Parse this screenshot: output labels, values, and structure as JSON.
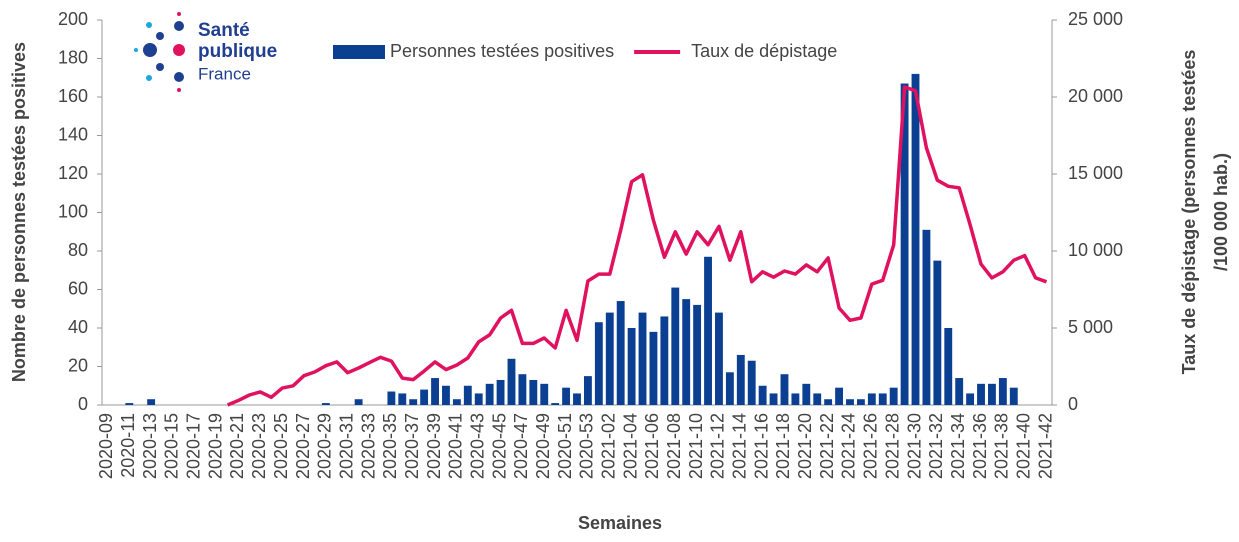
{
  "chart_data": {
    "type": "bar_line",
    "logo": {
      "line1": "Santé",
      "line2": "publique",
      "line3": "France"
    },
    "x_label": "Semaines",
    "y_label": "Nombre de personnes testées positives",
    "y2_label_line1": "Taux de dépistage (personnes testées",
    "y2_label_line2": "/100 000 hab.)",
    "categories": [
      "2020-09",
      null,
      "2020-11",
      null,
      "2020-13",
      null,
      "2020-15",
      null,
      "2020-17",
      null,
      "2020-19",
      null,
      "2020-21",
      null,
      "2020-23",
      null,
      "2020-25",
      null,
      "2020-27",
      null,
      "2020-29",
      null,
      "2020-31",
      null,
      "2020-33",
      null,
      "2020-35",
      null,
      "2020-37",
      null,
      "2020-39",
      null,
      "2020-41",
      null,
      "2020-43",
      null,
      "2020-45",
      null,
      "2020-47",
      null,
      "2020-49",
      null,
      "2020-51",
      null,
      "2020-53",
      null,
      "2021-02",
      null,
      "2021-04",
      null,
      "2021-06",
      null,
      "2021-08",
      null,
      "2021-10",
      null,
      "2021-12",
      null,
      "2021-14",
      null,
      "2021-16",
      null,
      "2021-18",
      null,
      "2021-20",
      null,
      "2021-22",
      null,
      "2021-24",
      null,
      "2021-26",
      null,
      "2021-28",
      null,
      "2021-30",
      null,
      "2021-32",
      null,
      "2021-34",
      null,
      "2021-36",
      null,
      "2021-38",
      null,
      "2021-40",
      null,
      "2021-42"
    ],
    "series": [
      {
        "name": "Personnes testées positives",
        "color": "#0b3f91",
        "kind": "bar",
        "values": [
          0,
          0,
          1,
          0,
          3,
          0,
          0,
          0,
          0,
          0,
          0,
          0,
          0,
          0,
          0,
          0,
          0,
          0,
          0,
          0,
          1,
          0,
          0,
          3,
          0,
          0,
          7,
          6,
          3,
          8,
          14,
          10,
          3,
          10,
          6,
          11,
          13,
          24,
          16,
          13,
          11,
          1,
          9,
          6,
          15,
          43,
          48,
          54,
          40,
          48,
          38,
          46,
          61,
          55,
          52,
          77,
          48,
          17,
          26,
          23,
          10,
          6,
          16,
          6,
          11,
          6,
          3,
          9,
          3,
          3,
          6,
          6,
          9,
          167,
          172,
          91,
          75,
          40,
          14,
          6,
          11,
          11,
          14,
          9,
          0,
          0,
          0
        ]
      },
      {
        "name": "Taux de dépistage",
        "color": "#e0115f",
        "kind": "line",
        "axis": "y2",
        "values": [
          null,
          null,
          null,
          null,
          null,
          null,
          null,
          null,
          null,
          null,
          null,
          0,
          300,
          650,
          850,
          500,
          1100,
          1250,
          1900,
          2150,
          2550,
          2800,
          2100,
          2400,
          2750,
          3100,
          2850,
          1750,
          1650,
          2200,
          2800,
          2300,
          2600,
          3050,
          4100,
          4550,
          5650,
          6150,
          4000,
          4000,
          4350,
          3700,
          6150,
          4200,
          8050,
          8500,
          8500,
          11350,
          14500,
          14950,
          12000,
          9600,
          11250,
          9800,
          11250,
          10400,
          11600,
          9400,
          11250,
          8000,
          8650,
          8300,
          8700,
          8500,
          9100,
          8650,
          9550,
          6300,
          5500,
          5650,
          7850,
          8100,
          10400,
          20650,
          20400,
          16700,
          14600,
          14200,
          14100,
          11700,
          9150,
          8250,
          8650,
          9400,
          9700,
          8250,
          8000
        ]
      }
    ],
    "ylim": [
      0,
      200
    ],
    "yticks": [
      0,
      20,
      40,
      60,
      80,
      100,
      120,
      140,
      160,
      180,
      200
    ],
    "y2lim": [
      0,
      25000
    ],
    "y2ticks": [
      0,
      {
        "value": 5000,
        "label": "5 000"
      },
      {
        "value": 10000,
        "label": "10 000"
      },
      {
        "value": 15000,
        "label": "15 000"
      },
      {
        "value": 20000,
        "label": "20 000"
      },
      {
        "value": 25000,
        "label": "25 000"
      }
    ],
    "legend": "top"
  }
}
